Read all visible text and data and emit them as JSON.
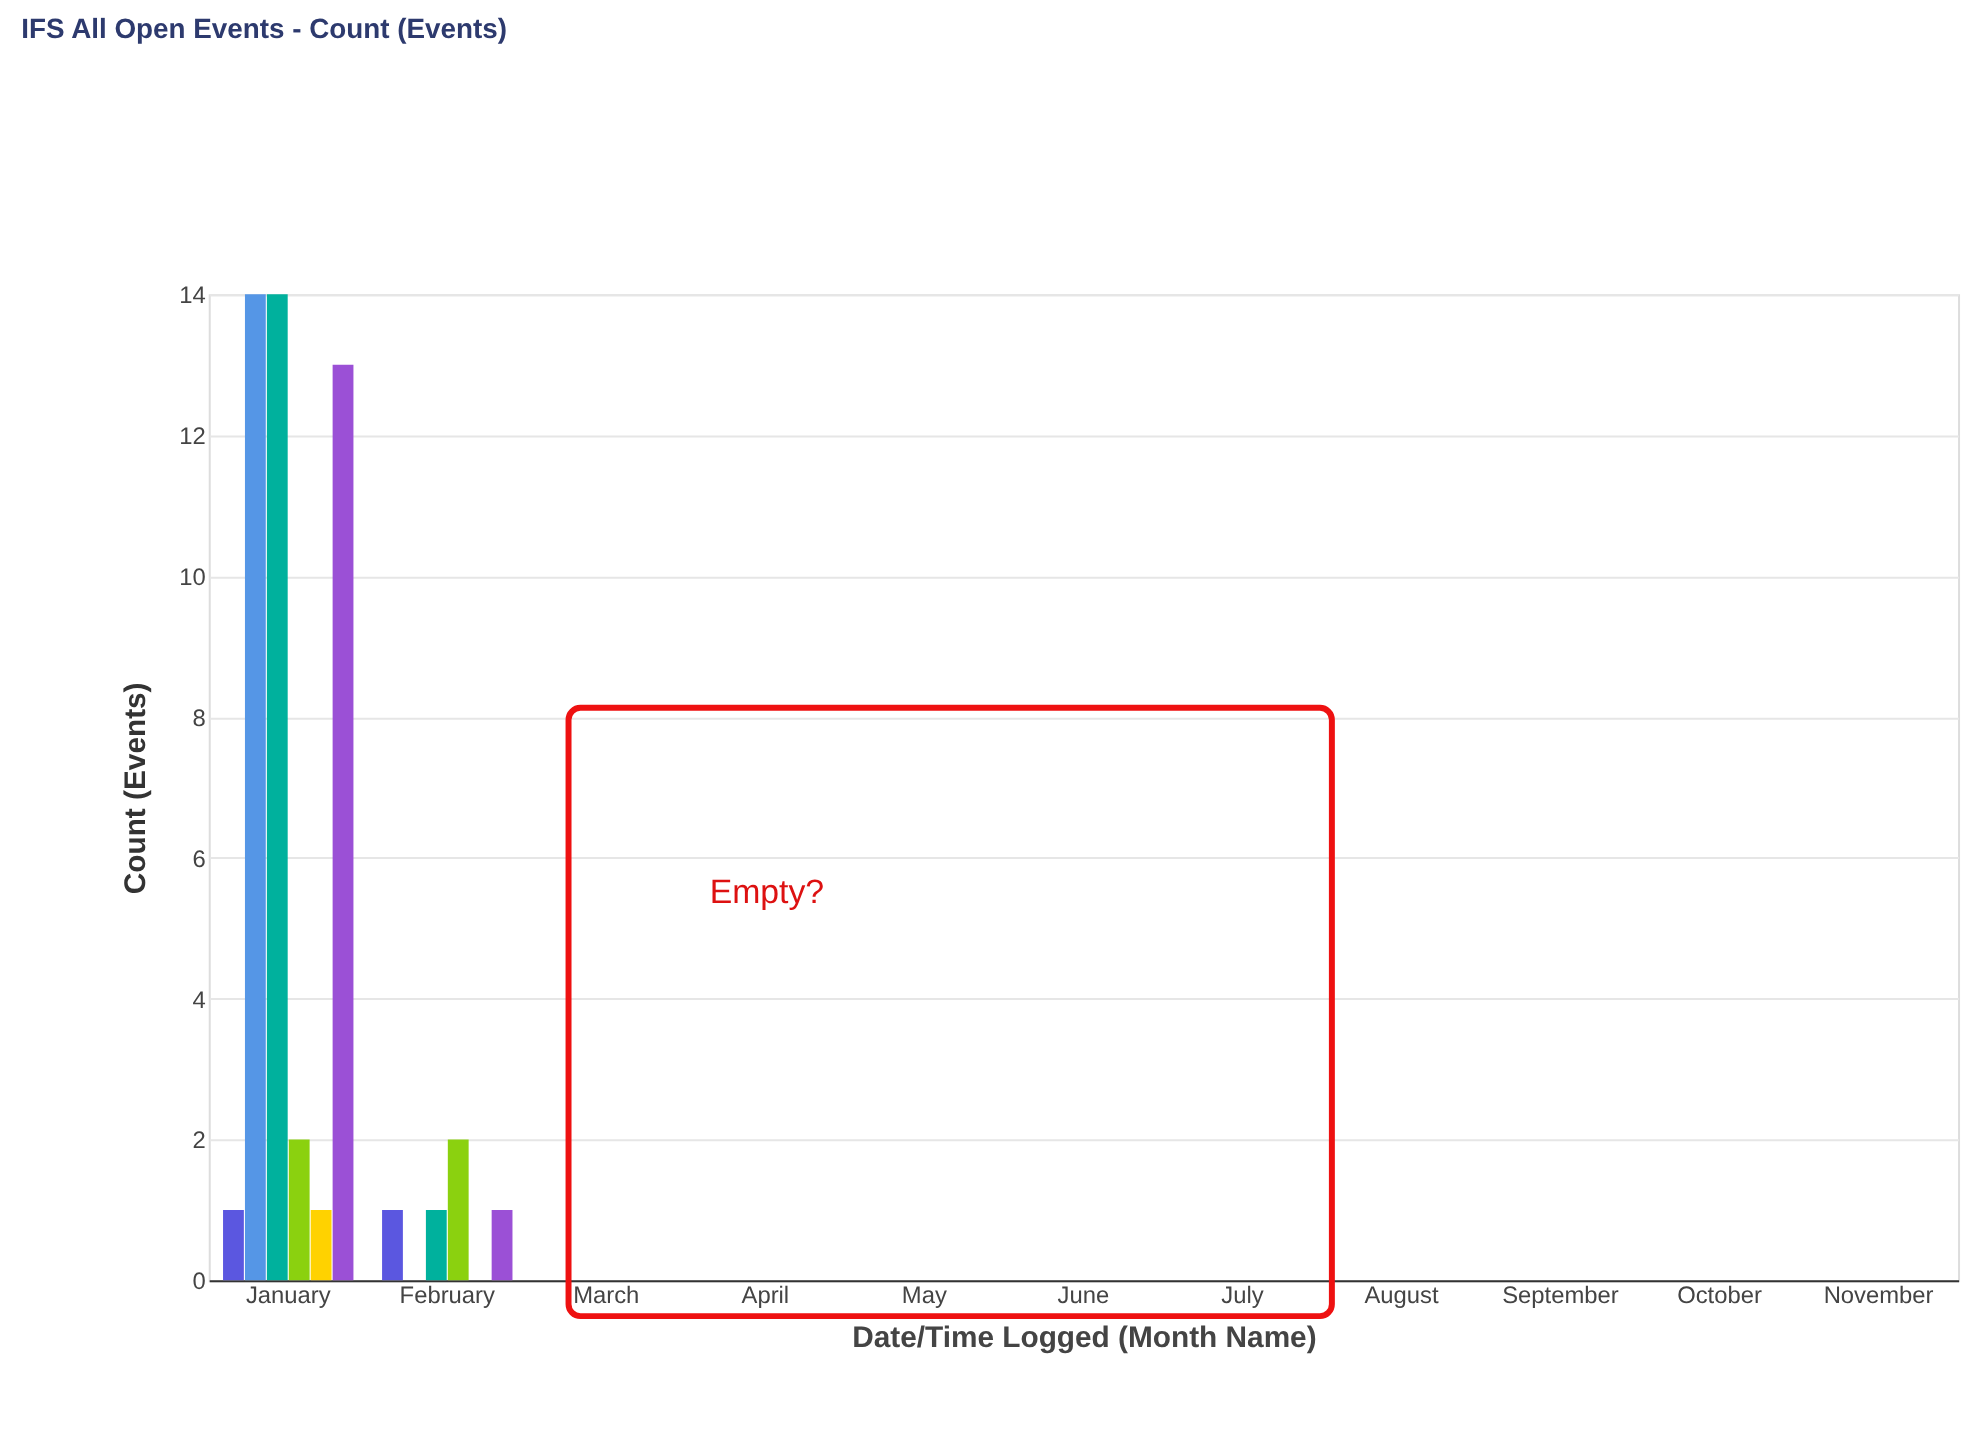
{
  "chart_data": {
    "type": "bar",
    "title": "IFS All Open Events - Count (Events)",
    "xlabel": "Date/Time Logged (Month Name)",
    "ylabel": "Count (Events)",
    "categories": [
      "January",
      "February",
      "March",
      "April",
      "May",
      "June",
      "July",
      "August",
      "September",
      "October",
      "November"
    ],
    "series": [
      {
        "color": "#5b57e0",
        "values": [
          1,
          1,
          null,
          null,
          null,
          null,
          null,
          null,
          null,
          null,
          null
        ]
      },
      {
        "color": "#5596e6",
        "values": [
          14,
          null,
          null,
          null,
          null,
          null,
          null,
          null,
          null,
          null,
          null
        ]
      },
      {
        "color": "#00b19d",
        "values": [
          14,
          1,
          null,
          null,
          null,
          null,
          null,
          null,
          null,
          null,
          null
        ]
      },
      {
        "color": "#8bd10f",
        "values": [
          2,
          2,
          null,
          null,
          null,
          null,
          null,
          null,
          null,
          null,
          null
        ]
      },
      {
        "color": "#ffd200",
        "values": [
          1,
          null,
          null,
          null,
          null,
          null,
          null,
          null,
          null,
          null,
          null
        ]
      },
      {
        "color": "#9b50d6",
        "values": [
          13,
          1,
          null,
          null,
          null,
          null,
          null,
          null,
          null,
          null,
          null
        ]
      }
    ],
    "ylim": [
      0,
      14
    ],
    "yticks": [
      0,
      2,
      4,
      6,
      8,
      10,
      12,
      14
    ],
    "grid": "y",
    "legend": false,
    "annotations": [
      "Empty?"
    ]
  }
}
